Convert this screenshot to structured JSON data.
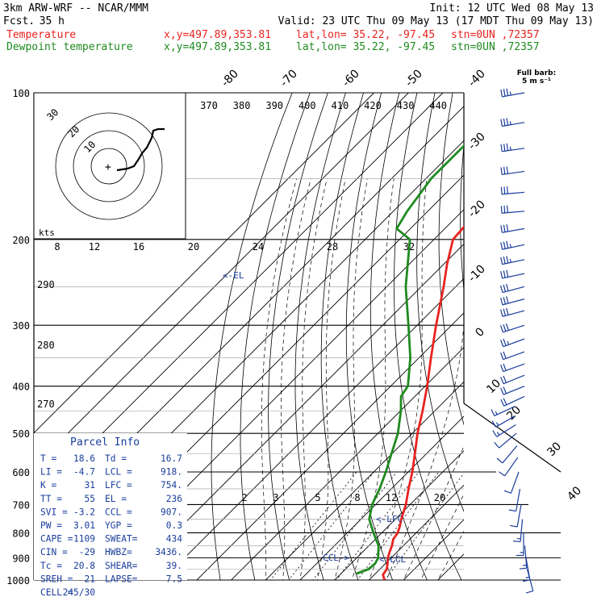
{
  "header": {
    "model": "3km ARW-WRF -- NCAR/MMM",
    "init": "Init: 12 UTC Wed 08 May 13",
    "fcst_label": "Fcst.",
    "fcst_value": "35 h",
    "valid": "Valid: 23 UTC Thu 09 May 13 (17 MDT Thu 09 May 13)"
  },
  "legend": [
    {
      "name": "Temperature",
      "color": "#e8231f",
      "xy": "x,y=497.89,353.81",
      "latlon": "lat,lon= 35.22, -97.45",
      "stn": "stn=0UN ,72357"
    },
    {
      "name": "Dewpoint temperature",
      "color": "#1f8a1f",
      "xy": "x,y=497.89,353.81",
      "latlon": "lat,lon= 35.22, -97.45",
      "stn": "stn=0UN ,72357"
    }
  ],
  "barb_legend": {
    "line1": "Full barb:",
    "line2": "5 m s⁻¹"
  },
  "parcel_info": {
    "title": "Parcel Info",
    "rows": [
      [
        "T  =",
        "18.6",
        "Td =",
        "16.7"
      ],
      [
        "LI =",
        "-4.7",
        "LCL =",
        "918."
      ],
      [
        "K  =",
        "31",
        "LFC =",
        "754."
      ],
      [
        "TT =",
        "55",
        "EL =",
        "236"
      ],
      [
        "SVI =",
        "-3.2",
        "CCL =",
        "907."
      ],
      [
        "PW =",
        "3.01",
        "YGP =",
        "0.3"
      ],
      [
        "CAPE =",
        "1109",
        "SWEAT=",
        "434"
      ],
      [
        "CIN =",
        "-29",
        "HWBZ=",
        "3436."
      ],
      [
        "Tc =",
        "20.8",
        "SHEAR=",
        "39."
      ],
      [
        "SREH =",
        "21",
        "LAPSE=",
        "7.5"
      ],
      [
        "CELL =",
        "245/30",
        "",
        ""
      ]
    ]
  },
  "hodograph": {
    "ring_labels": [
      "30",
      "20",
      "10"
    ],
    "kts_label": "kts",
    "center_mark": "+"
  },
  "annotations": {
    "el": "<-EL",
    "lfc": "<-LFC",
    "lcl": "<-LCL",
    "ccl": "CCL->"
  },
  "chart_data": {
    "type": "line",
    "title": "",
    "ylabel": "",
    "xlabel": "",
    "y_scale": "log pressure (hPa), reversed",
    "ylim": [
      1000,
      100
    ],
    "xlim_bottom": [
      -40,
      40
    ],
    "pressure_ticks": [
      100,
      200,
      300,
      400,
      500,
      600,
      700,
      800,
      900,
      1000
    ],
    "isotherm_labels": [
      -80,
      -70,
      -60,
      -50,
      -40,
      -30,
      -20,
      -10,
      0,
      10,
      20,
      30,
      40
    ],
    "theta_labels": [
      370,
      380,
      390,
      400,
      410,
      420,
      430,
      440
    ],
    "theta_left_labels": [
      290,
      280,
      270
    ],
    "mixing_ratio_labels_top": [
      8,
      12,
      16,
      20,
      24,
      28,
      32
    ],
    "mixing_ratio_labels_low": [
      2,
      3,
      5,
      8,
      12,
      20
    ],
    "series": [
      {
        "name": "Temperature",
        "color": "#e8231f",
        "points": [
          [
            1000,
            24.5
          ],
          [
            975,
            22.5
          ],
          [
            950,
            22.0
          ],
          [
            925,
            20.6
          ],
          [
            900,
            19.0
          ],
          [
            875,
            17.8
          ],
          [
            850,
            16.7
          ],
          [
            825,
            15.2
          ],
          [
            800,
            14.6
          ],
          [
            775,
            13.3
          ],
          [
            750,
            11.7
          ],
          [
            700,
            8.8
          ],
          [
            650,
            5.0
          ],
          [
            600,
            1.2
          ],
          [
            550,
            -3.4
          ],
          [
            500,
            -8.5
          ],
          [
            450,
            -13.5
          ],
          [
            400,
            -19.4
          ],
          [
            350,
            -26.5
          ],
          [
            300,
            -34.5
          ],
          [
            250,
            -43.5
          ],
          [
            225,
            -49.0
          ],
          [
            200,
            -54.5
          ],
          [
            175,
            -55.5
          ],
          [
            150,
            -57.5
          ],
          [
            125,
            -60.5
          ],
          [
            110,
            -62.5
          ],
          [
            100,
            -63.0
          ]
        ]
      },
      {
        "name": "Dewpoint temperature",
        "color": "#1f8a1f",
        "points": [
          [
            970,
            14.5
          ],
          [
            950,
            16.7
          ],
          [
            925,
            17.0
          ],
          [
            900,
            16.2
          ],
          [
            875,
            14.5
          ],
          [
            850,
            12.8
          ],
          [
            825,
            10.2
          ],
          [
            800,
            7.6
          ],
          [
            775,
            5.0
          ],
          [
            750,
            2.4
          ],
          [
            700,
            -1.0
          ],
          [
            650,
            -3.4
          ],
          [
            600,
            -6.5
          ],
          [
            550,
            -10.2
          ],
          [
            500,
            -14.2
          ],
          [
            450,
            -19.8
          ],
          [
            420,
            -24.0
          ],
          [
            400,
            -25.0
          ],
          [
            350,
            -32.5
          ],
          [
            300,
            -42.5
          ],
          [
            250,
            -54.5
          ],
          [
            200,
            -67.0
          ],
          [
            190,
            -74.0
          ],
          [
            175,
            -76.0
          ],
          [
            150,
            -78.5
          ],
          [
            125,
            -78.5
          ],
          [
            100,
            -78.0
          ]
        ]
      }
    ],
    "wind_barbs": [
      {
        "p": 100,
        "dir": 260,
        "spd": 18
      },
      {
        "p": 115,
        "dir": 260,
        "spd": 18
      },
      {
        "p": 130,
        "dir": 262,
        "spd": 18
      },
      {
        "p": 145,
        "dir": 262,
        "spd": 17
      },
      {
        "p": 160,
        "dir": 265,
        "spd": 16
      },
      {
        "p": 175,
        "dir": 265,
        "spd": 16
      },
      {
        "p": 190,
        "dir": 260,
        "spd": 17
      },
      {
        "p": 205,
        "dir": 258,
        "spd": 18
      },
      {
        "p": 220,
        "dir": 258,
        "spd": 18
      },
      {
        "p": 235,
        "dir": 258,
        "spd": 17
      },
      {
        "p": 250,
        "dir": 255,
        "spd": 17
      },
      {
        "p": 265,
        "dir": 255,
        "spd": 16
      },
      {
        "p": 280,
        "dir": 255,
        "spd": 15
      },
      {
        "p": 300,
        "dir": 252,
        "spd": 15
      },
      {
        "p": 320,
        "dir": 250,
        "spd": 13
      },
      {
        "p": 340,
        "dir": 250,
        "spd": 12
      },
      {
        "p": 360,
        "dir": 250,
        "spd": 11
      },
      {
        "p": 380,
        "dir": 248,
        "spd": 10
      },
      {
        "p": 400,
        "dir": 248,
        "spd": 10
      },
      {
        "p": 420,
        "dir": 245,
        "spd": 10
      },
      {
        "p": 440,
        "dir": 245,
        "spd": 9
      },
      {
        "p": 460,
        "dir": 240,
        "spd": 9
      },
      {
        "p": 480,
        "dir": 238,
        "spd": 8
      },
      {
        "p": 500,
        "dir": 230,
        "spd": 7
      },
      {
        "p": 530,
        "dir": 220,
        "spd": 6
      },
      {
        "p": 560,
        "dir": 215,
        "spd": 5
      },
      {
        "p": 600,
        "dir": 200,
        "spd": 5
      },
      {
        "p": 650,
        "dir": 190,
        "spd": 6
      },
      {
        "p": 700,
        "dir": 190,
        "spd": 7
      },
      {
        "p": 750,
        "dir": 185,
        "spd": 8
      },
      {
        "p": 800,
        "dir": 180,
        "spd": 8
      },
      {
        "p": 850,
        "dir": 175,
        "spd": 9
      },
      {
        "p": 900,
        "dir": 170,
        "spd": 8
      },
      {
        "p": 950,
        "dir": 165,
        "spd": 6
      }
    ]
  }
}
